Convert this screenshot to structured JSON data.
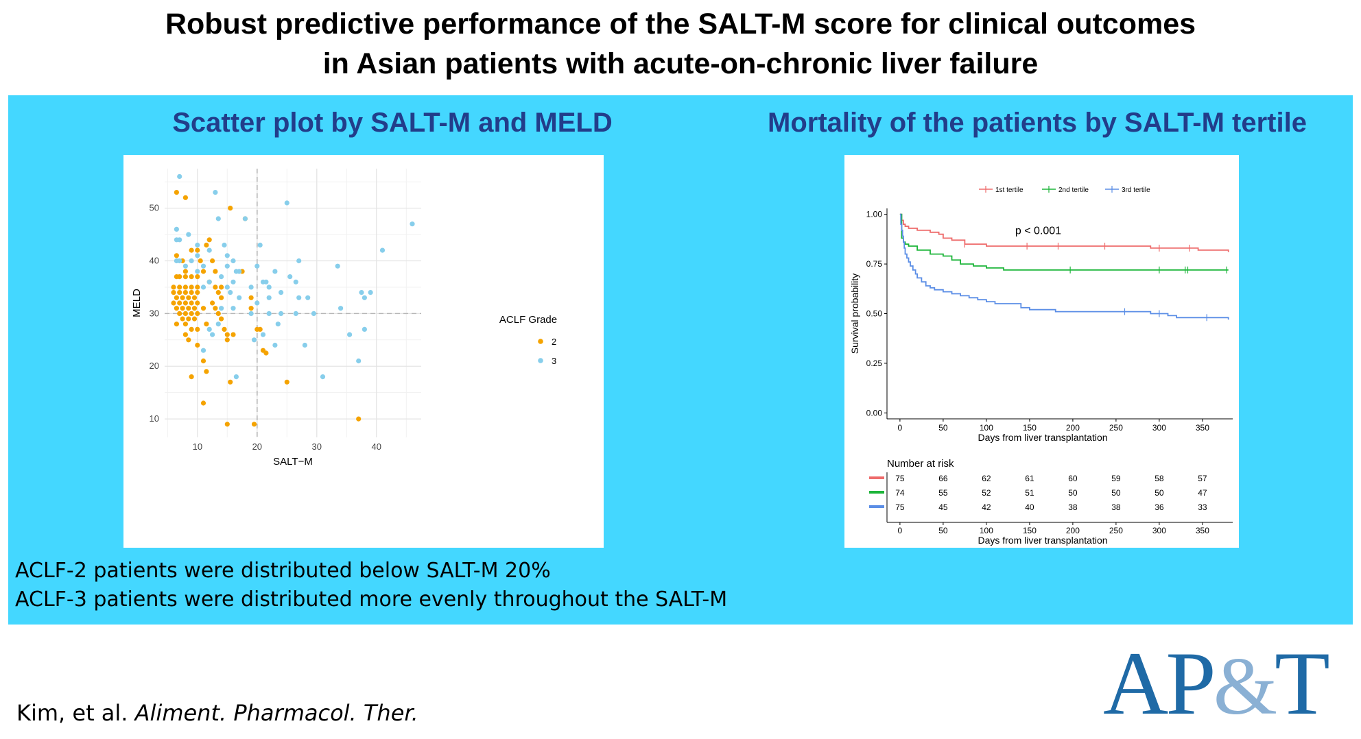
{
  "title": {
    "line1": "Robust predictive performance of the SALT-M score for clinical outcomes",
    "line2": "in Asian patients with acute-on-chronic liver failure"
  },
  "left_heading": "Scatter plot by SALT-M and MELD",
  "right_heading": "Mortality of the patients by SALT-M tertile",
  "notes": {
    "line1": "ACLF-2 patients were distributed below SALT-M 20%",
    "line2": "ACLF-3 patients were distributed more evenly throughout the SALT-M"
  },
  "citation": {
    "authors": "Kim, et al. ",
    "journal": "Aliment. Pharmacol. Ther."
  },
  "logo": {
    "part1": "AP",
    "amp": "&",
    "part2": "T"
  },
  "colors": {
    "panel_bg": "#44d7ff",
    "heading": "#223d8a",
    "grade2": "#f5a300",
    "grade3": "#87ceeb",
    "tertile1": "#ee6b6b",
    "tertile2": "#1db53a",
    "tertile3": "#5b8ee6",
    "logo": "#1f6aa6"
  },
  "chart_data": [
    {
      "type": "scatter",
      "title": "",
      "xlabel": "SALT−M",
      "ylabel": "MELD",
      "xlim": [
        4.5,
        47.5
      ],
      "ylim": [
        6.5,
        57.5
      ],
      "xticks": [
        10,
        20,
        30,
        40
      ],
      "yticks": [
        10,
        20,
        30,
        40,
        50
      ],
      "reference_lines": {
        "x": 20,
        "y": 30
      },
      "grid": true,
      "legend": {
        "title": "ACLF Grade",
        "entries": [
          "2",
          "3"
        ],
        "placement": "right"
      },
      "series": [
        {
          "name": "2",
          "points": [
            [
              6.5,
              53
            ],
            [
              8,
              52
            ],
            [
              6.5,
              41
            ],
            [
              7.5,
              40
            ],
            [
              9,
              42
            ],
            [
              10,
              42
            ],
            [
              10.5,
              40
            ],
            [
              8,
              38
            ],
            [
              6.5,
              37
            ],
            [
              7,
              37
            ],
            [
              8,
              37
            ],
            [
              9,
              37
            ],
            [
              10,
              37
            ],
            [
              6,
              35
            ],
            [
              7,
              35
            ],
            [
              8,
              35
            ],
            [
              9,
              35
            ],
            [
              10,
              35
            ],
            [
              6,
              34
            ],
            [
              7,
              34
            ],
            [
              8,
              34
            ],
            [
              9,
              34
            ],
            [
              10,
              34
            ],
            [
              6.5,
              33
            ],
            [
              7.5,
              33
            ],
            [
              8.5,
              33
            ],
            [
              9.5,
              33
            ],
            [
              6,
              32
            ],
            [
              7,
              32
            ],
            [
              8,
              32
            ],
            [
              9,
              32
            ],
            [
              10,
              32
            ],
            [
              6.5,
              31
            ],
            [
              7.5,
              31
            ],
            [
              8.5,
              31
            ],
            [
              9.5,
              31
            ],
            [
              7,
              30
            ],
            [
              8,
              30
            ],
            [
              9,
              30
            ],
            [
              10,
              30
            ],
            [
              7.5,
              29
            ],
            [
              8.5,
              29
            ],
            [
              9.5,
              29
            ],
            [
              6.5,
              28
            ],
            [
              8,
              28
            ],
            [
              9,
              27
            ],
            [
              10,
              27
            ],
            [
              8,
              26
            ],
            [
              8.5,
              25
            ],
            [
              10,
              24
            ],
            [
              11,
              31
            ],
            [
              11.5,
              28
            ],
            [
              11,
              38
            ],
            [
              11.5,
              43
            ],
            [
              12,
              44
            ],
            [
              12.5,
              40
            ],
            [
              13,
              38
            ],
            [
              12,
              36
            ],
            [
              13,
              35
            ],
            [
              14,
              35
            ],
            [
              13.5,
              34
            ],
            [
              14,
              33
            ],
            [
              12.5,
              32
            ],
            [
              13,
              31
            ],
            [
              13.5,
              30
            ],
            [
              14,
              29
            ],
            [
              14.5,
              27
            ],
            [
              15,
              26
            ],
            [
              15,
              25
            ],
            [
              16,
              26
            ],
            [
              15.5,
              50
            ],
            [
              17.5,
              38
            ],
            [
              18,
              48
            ],
            [
              19,
              31
            ],
            [
              19,
              33
            ],
            [
              20,
              27
            ],
            [
              20.5,
              27
            ],
            [
              21,
              23
            ],
            [
              21.5,
              22.5
            ],
            [
              11,
              21
            ],
            [
              11.5,
              19
            ],
            [
              9,
              18
            ],
            [
              15.5,
              17
            ],
            [
              11,
              13
            ],
            [
              15,
              9
            ],
            [
              19.5,
              9
            ],
            [
              25,
              17
            ],
            [
              37,
              10
            ]
          ]
        },
        {
          "name": "3",
          "points": [
            [
              7,
              56
            ],
            [
              6.5,
              46
            ],
            [
              6.5,
              44
            ],
            [
              7,
              44
            ],
            [
              8.5,
              45
            ],
            [
              6.5,
              40
            ],
            [
              7,
              40
            ],
            [
              9,
              40
            ],
            [
              10,
              43
            ],
            [
              10,
              41
            ],
            [
              11,
              39
            ],
            [
              8,
              39
            ],
            [
              10,
              38
            ],
            [
              11,
              35
            ],
            [
              12,
              42
            ],
            [
              13,
              53
            ],
            [
              13.5,
              48
            ],
            [
              12,
              36
            ],
            [
              14,
              37
            ],
            [
              14.5,
              43
            ],
            [
              15,
              41
            ],
            [
              15,
              39
            ],
            [
              16,
              40
            ],
            [
              16.5,
              38
            ],
            [
              17,
              38
            ],
            [
              16,
              36
            ],
            [
              15,
              35
            ],
            [
              15.5,
              34
            ],
            [
              17,
              33
            ],
            [
              16,
              31
            ],
            [
              14,
              31
            ],
            [
              13.5,
              28
            ],
            [
              12,
              27
            ],
            [
              12.5,
              26
            ],
            [
              11,
              23
            ],
            [
              16.5,
              18
            ],
            [
              18,
              48
            ],
            [
              19,
              35
            ],
            [
              20,
              39
            ],
            [
              20.5,
              43
            ],
            [
              21,
              36
            ],
            [
              21.5,
              36
            ],
            [
              20,
              32
            ],
            [
              22,
              35
            ],
            [
              22,
              33
            ],
            [
              23,
              38
            ],
            [
              24,
              34
            ],
            [
              23.5,
              28
            ],
            [
              23,
              24
            ],
            [
              19.5,
              25
            ],
            [
              21,
              26
            ],
            [
              25,
              51
            ],
            [
              25.5,
              37
            ],
            [
              27,
              40
            ],
            [
              26.5,
              36
            ],
            [
              27,
              33
            ],
            [
              28.5,
              33
            ],
            [
              26.5,
              30
            ],
            [
              29.5,
              30
            ],
            [
              28,
              24
            ],
            [
              31,
              18
            ],
            [
              33.5,
              39
            ],
            [
              34,
              31
            ],
            [
              35.5,
              26
            ],
            [
              37.5,
              34
            ],
            [
              38,
              33
            ],
            [
              38,
              27
            ],
            [
              39,
              34
            ],
            [
              37,
              21
            ],
            [
              41,
              42
            ],
            [
              46,
              47
            ],
            [
              19,
              30
            ],
            [
              22,
              30
            ],
            [
              24,
              30
            ]
          ]
        }
      ]
    },
    {
      "type": "line",
      "subtype": "kaplan-meier",
      "xlabel": "Days from liver transplantation",
      "ylabel": "Survival probability",
      "xlim": [
        -15,
        385
      ],
      "ylim": [
        -0.03,
        1.03
      ],
      "xticks": [
        0,
        50,
        100,
        150,
        200,
        250,
        300,
        350
      ],
      "yticks": [
        "0.00",
        "0.25",
        "0.50",
        "0.75",
        "1.00"
      ],
      "annotation": "p < 0.001",
      "legend": {
        "entries": [
          "1st tertile",
          "2nd tertile",
          "3rd tertile"
        ],
        "placement": "top"
      },
      "series": [
        {
          "name": "1st tertile",
          "x": [
            0,
            2,
            4,
            6,
            10,
            20,
            35,
            45,
            50,
            60,
            75,
            100,
            200,
            290,
            330,
            345,
            380
          ],
          "y": [
            1.0,
            0.97,
            0.95,
            0.94,
            0.93,
            0.92,
            0.91,
            0.9,
            0.88,
            0.87,
            0.85,
            0.84,
            0.84,
            0.83,
            0.83,
            0.82,
            0.81
          ],
          "censor_x": [
            75,
            147,
            183,
            237,
            300,
            335
          ]
        },
        {
          "name": "2nd tertile",
          "x": [
            0,
            2,
            4,
            6,
            10,
            20,
            35,
            50,
            60,
            70,
            85,
            100,
            120,
            380
          ],
          "y": [
            1.0,
            0.88,
            0.86,
            0.85,
            0.84,
            0.82,
            0.8,
            0.79,
            0.77,
            0.75,
            0.74,
            0.73,
            0.72,
            0.72
          ],
          "censor_x": [
            197,
            300,
            330,
            333,
            378
          ]
        },
        {
          "name": "3rd tertile",
          "x": [
            0,
            1,
            2,
            3,
            4,
            5,
            6,
            8,
            10,
            12,
            15,
            18,
            20,
            25,
            30,
            35,
            40,
            50,
            60,
            70,
            80,
            90,
            100,
            110,
            140,
            150,
            180,
            200,
            230,
            260,
            290,
            310,
            320,
            340,
            380
          ],
          "y": [
            1.0,
            0.95,
            0.92,
            0.89,
            0.86,
            0.83,
            0.8,
            0.78,
            0.76,
            0.74,
            0.72,
            0.7,
            0.68,
            0.66,
            0.64,
            0.63,
            0.62,
            0.61,
            0.6,
            0.59,
            0.58,
            0.57,
            0.56,
            0.55,
            0.53,
            0.52,
            0.51,
            0.51,
            0.51,
            0.51,
            0.5,
            0.49,
            0.48,
            0.48,
            0.47
          ],
          "censor_x": [
            260,
            300,
            355
          ]
        }
      ],
      "risk_table": {
        "title": "Number at risk",
        "times": [
          0,
          50,
          100,
          150,
          200,
          250,
          300,
          350
        ],
        "rows": [
          {
            "name": "1st tertile",
            "values": [
              75,
              66,
              62,
              61,
              60,
              59,
              58,
              57
            ]
          },
          {
            "name": "2nd tertile",
            "values": [
              74,
              55,
              52,
              51,
              50,
              50,
              50,
              47
            ]
          },
          {
            "name": "3rd tertile",
            "values": [
              75,
              45,
              42,
              40,
              38,
              38,
              36,
              33
            ]
          }
        ],
        "xlabel": "Days from liver transplantation"
      }
    }
  ]
}
